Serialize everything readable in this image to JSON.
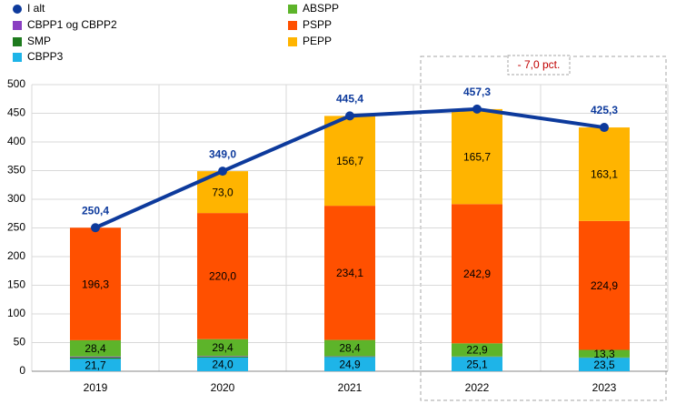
{
  "chart_data": {
    "type": "bar",
    "categories": [
      "2019",
      "2020",
      "2021",
      "2022",
      "2023"
    ],
    "series": [
      {
        "name": "I alt",
        "type": "line",
        "color": "#0d3a9c",
        "values": [
          250.4,
          349.0,
          445.4,
          457.3,
          425.3
        ],
        "value_labels": [
          "250,4",
          "349,0",
          "445,4",
          "457,3",
          "425,3"
        ]
      },
      {
        "name": "CBPP1 og  CBPP2",
        "color": "#8a3fc2",
        "values": [
          1.5,
          1.0,
          0.5,
          0.3,
          0.2
        ]
      },
      {
        "name": "SMP",
        "color": "#1e7b1e",
        "values": [
          2.5,
          1.6,
          0.8,
          0.4,
          0.3
        ]
      },
      {
        "name": "CBPP3",
        "color": "#1eb4e8",
        "values": [
          21.7,
          24.0,
          24.9,
          25.1,
          23.5
        ],
        "value_labels": [
          "21,7",
          "24,0",
          "24,9",
          "25,1",
          "23,5"
        ]
      },
      {
        "name": "ABSPP",
        "color": "#5db42a",
        "values": [
          28.4,
          29.4,
          28.4,
          22.9,
          13.3
        ],
        "value_labels": [
          "28,4",
          "29,4",
          "28,4",
          "22,9",
          "13,3"
        ]
      },
      {
        "name": "PSPP",
        "color": "#ff5000",
        "values": [
          196.3,
          220.0,
          234.1,
          242.9,
          224.9
        ],
        "value_labels": [
          "196,3",
          "220,0",
          "234,1",
          "242,9",
          "224,9"
        ]
      },
      {
        "name": "PEPP",
        "color": "#ffb400",
        "values": [
          0,
          73.0,
          156.7,
          165.7,
          163.1
        ],
        "value_labels": [
          null,
          "73,0",
          "156,7",
          "165,7",
          "163,1"
        ]
      }
    ],
    "annotation": "- 7,0 pct.",
    "ylim": [
      0,
      500
    ],
    "yticks": [
      0,
      50,
      100,
      150,
      200,
      250,
      300,
      350,
      400,
      450,
      500
    ],
    "grid": true
  }
}
